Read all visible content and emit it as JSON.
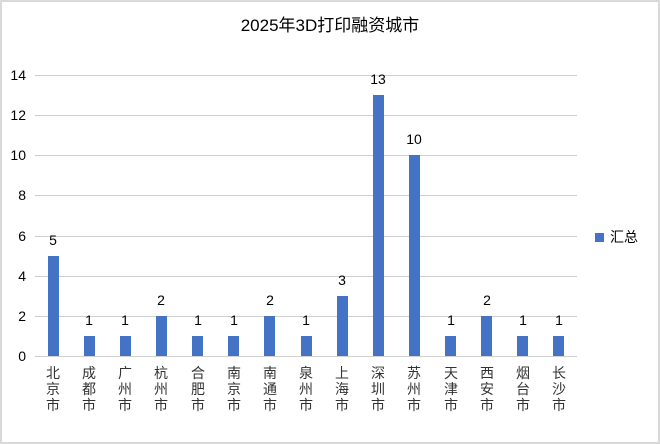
{
  "chart_data": {
    "type": "bar",
    "title": "2025年3D打印融资城市",
    "xlabel": "",
    "ylabel": "",
    "categories": [
      "北京市",
      "成都市",
      "广州市",
      "杭州市",
      "合肥市",
      "南京市",
      "南通市",
      "泉州市",
      "上海市",
      "深圳市",
      "苏州市",
      "天津市",
      "西安市",
      "烟台市",
      "长沙市"
    ],
    "series": [
      {
        "name": "汇总",
        "values": [
          5,
          1,
          1,
          2,
          1,
          1,
          2,
          1,
          3,
          13,
          10,
          1,
          2,
          1,
          1
        ],
        "color": "#4472c4"
      }
    ],
    "ylim": [
      0,
      14
    ],
    "yticks": [
      0,
      2,
      4,
      6,
      8,
      10,
      12,
      14
    ],
    "grid": true,
    "data_labels": true,
    "legend_position": "right"
  },
  "legend": {
    "label": "汇总"
  }
}
